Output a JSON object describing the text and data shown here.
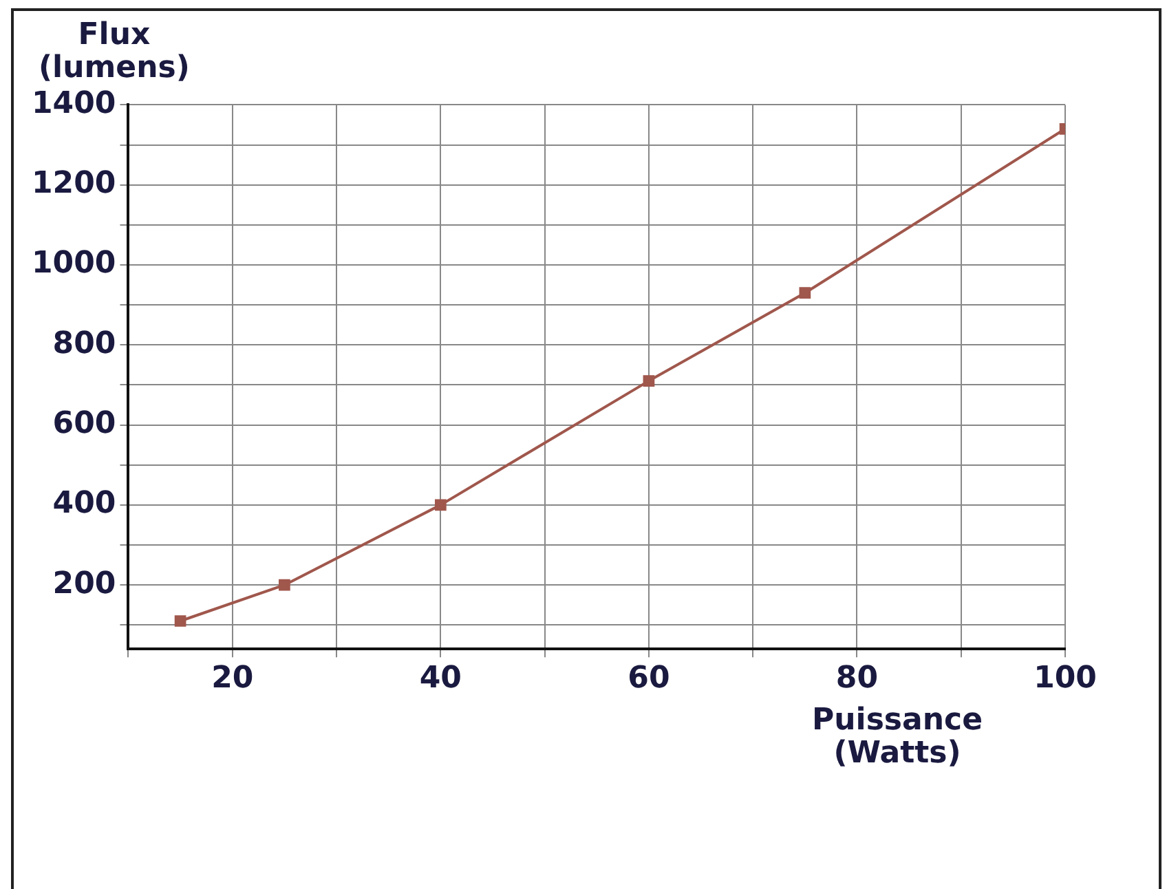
{
  "chart_data": {
    "type": "line",
    "xlabel": "Puissance (Watts)",
    "ylabel": "Flux (lumens)",
    "x": [
      15,
      25,
      40,
      60,
      75,
      100
    ],
    "series": [
      {
        "color": "#a0574c",
        "values": [
          110,
          200,
          400,
          710,
          930,
          1340
        ]
      }
    ],
    "xlim": [
      10,
      100
    ],
    "ylim": [
      40,
      1400
    ],
    "xticks": [
      {
        "value": 10,
        "label": null
      },
      20,
      {
        "value": 30,
        "label": null
      },
      40,
      {
        "value": 50,
        "label": null
      },
      60,
      {
        "value": 70,
        "label": null
      },
      80,
      {
        "value": 90,
        "label": null
      },
      100
    ],
    "yticks": [
      {
        "value": 100,
        "label": null
      },
      200,
      {
        "value": 300,
        "label": null
      },
      400,
      {
        "value": 500,
        "label": null
      },
      600,
      {
        "value": 700,
        "label": null
      },
      800,
      {
        "value": 900,
        "label": null
      },
      1000,
      {
        "value": 1100,
        "label": null
      },
      1200,
      {
        "value": 1300,
        "label": null
      },
      1400
    ],
    "grid": true,
    "legend": false,
    "marker": "square",
    "line_style": "solid"
  }
}
